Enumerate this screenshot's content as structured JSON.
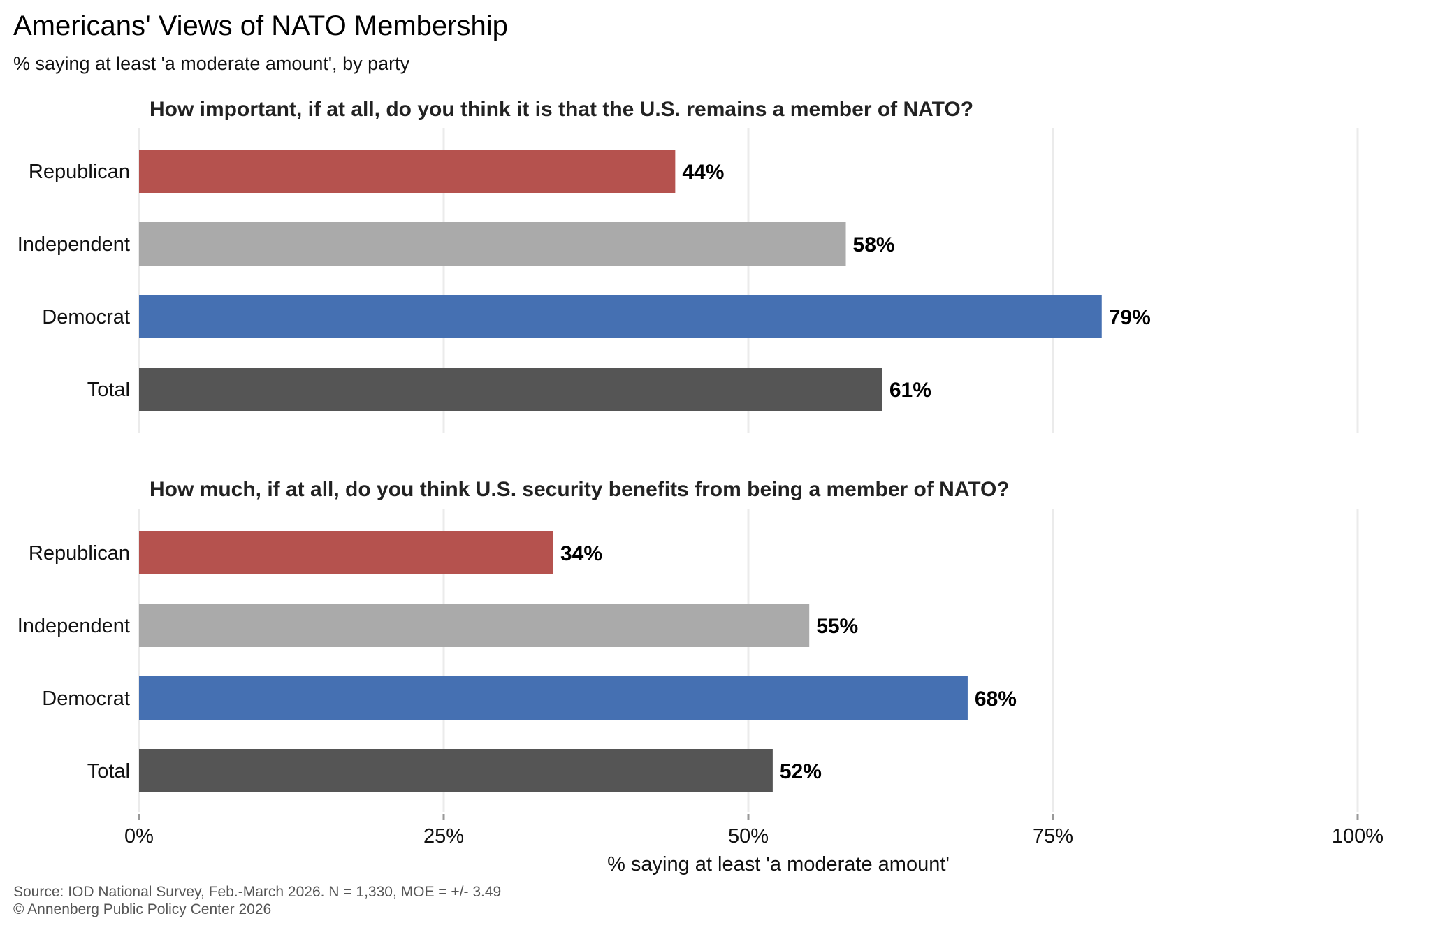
{
  "chart_data": {
    "type": "bar",
    "orientation": "horizontal",
    "title": "Americans' Views of NATO Membership",
    "subtitle": "% saying at least 'a moderate amount', by party",
    "xlabel": "% saying at least 'a moderate amount'",
    "ylabel": "",
    "xlim": [
      0,
      100
    ],
    "xticks": [
      0,
      25,
      50,
      75,
      100
    ],
    "xtick_labels": [
      "0%",
      "25%",
      "50%",
      "75%",
      "100%"
    ],
    "grid": true,
    "legend": "none",
    "categories": [
      "Republican",
      "Independent",
      "Democrat",
      "Total"
    ],
    "colors": {
      "Republican": "#b5524e",
      "Independent": "#aaaaaa",
      "Democrat": "#4570b2",
      "Total": "#555555"
    },
    "panels": [
      {
        "question": "How important, if at all, do you think it is that the U.S. remains a member of NATO?",
        "values": [
          44,
          58,
          79,
          61
        ],
        "labels": [
          "44%",
          "58%",
          "79%",
          "61%"
        ]
      },
      {
        "question": "How much, if at all, do you think U.S. security benefits from being a member of NATO?",
        "values": [
          34,
          55,
          68,
          52
        ],
        "labels": [
          "34%",
          "55%",
          "68%",
          "52%"
        ]
      }
    ],
    "source": "Source: IOD National Survey, Feb.-March 2026. N = 1,330, MOE = +/- 3.49",
    "copyright": "© Annenberg Public Policy Center 2026"
  }
}
